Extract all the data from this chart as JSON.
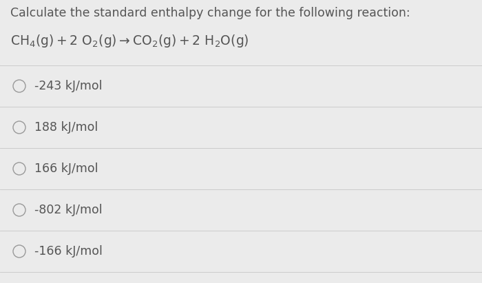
{
  "title": "Calculate the standard enthalpy change for the following reaction:",
  "options": [
    "-243 kJ/mol",
    "188 kJ/mol",
    "166 kJ/mol",
    "-802 kJ/mol",
    "-166 kJ/mol"
  ],
  "bg_color": "#ebebeb",
  "text_color": "#555555",
  "line_color": "#cccccc",
  "circle_color": "#999999",
  "title_fontsize": 12.5,
  "reaction_fontsize": 13.5,
  "option_fontsize": 12.5,
  "figsize": [
    7.0,
    4.11
  ],
  "dpi": 100
}
